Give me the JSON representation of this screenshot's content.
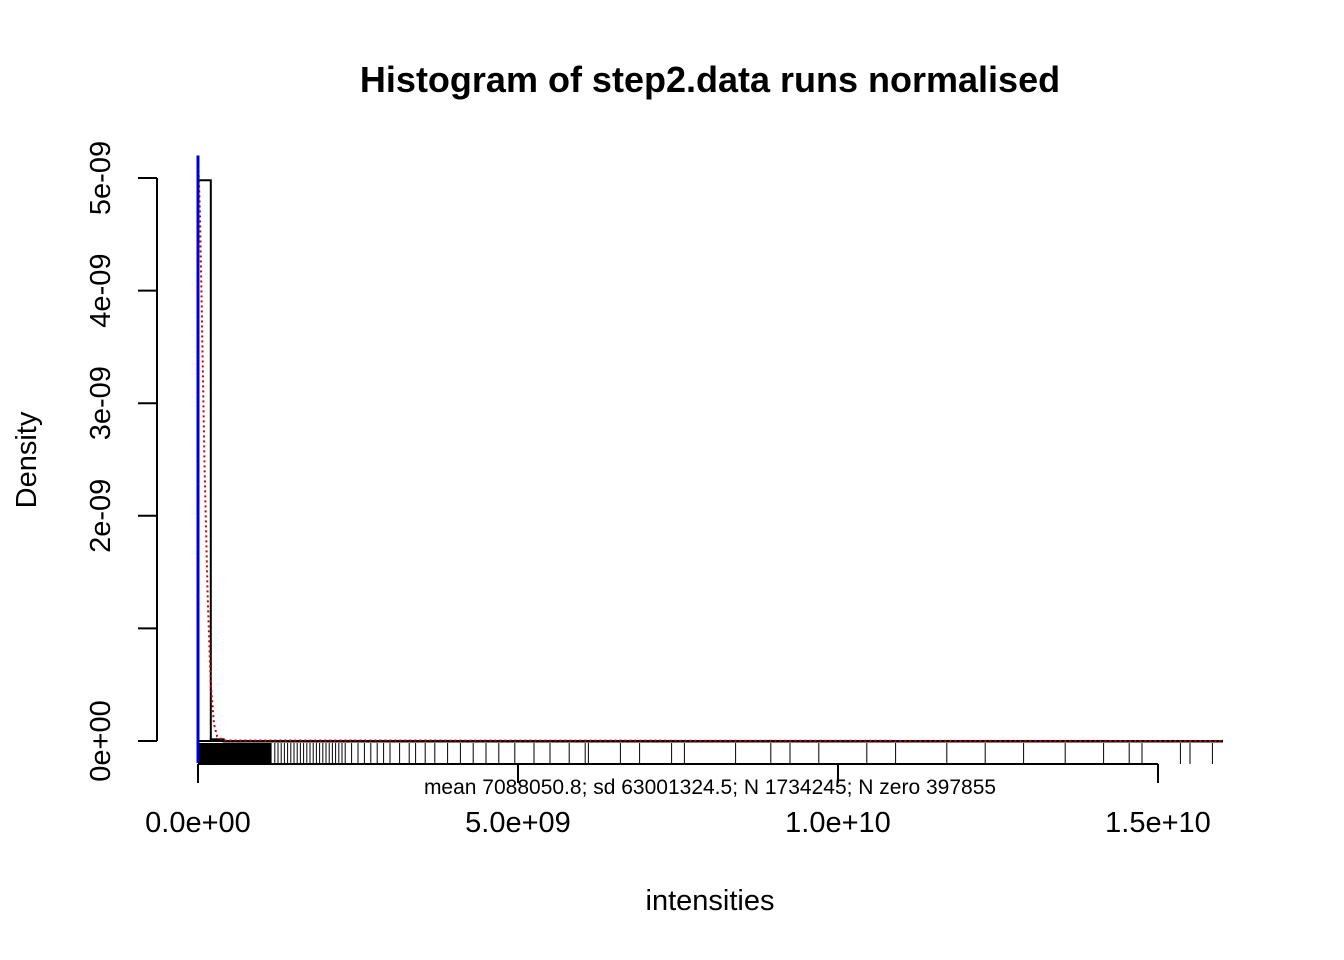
{
  "chart_data": {
    "type": "histogram",
    "title": "Histogram of step2.data runs normalised",
    "xlabel": "intensities",
    "ylabel": "Density",
    "subtitle": "mean 7088050.8; sd 63001324.5; N 1734245; N zero 397855",
    "xlim": [
      0,
      16000000000
    ],
    "ylim": [
      0,
      5e-09
    ],
    "x_ticks": [
      {
        "value": 0,
        "label": "0.0e+00"
      },
      {
        "value": 5000000000,
        "label": "5.0e+09"
      },
      {
        "value": 10000000000,
        "label": "1.0e+10"
      },
      {
        "value": 15000000000,
        "label": "1.5e+10"
      }
    ],
    "y_ticks": [
      {
        "value": 0,
        "label": "0e+00"
      },
      {
        "value": 1e-09,
        "label": ""
      },
      {
        "value": 2e-09,
        "label": "2e-09"
      },
      {
        "value": 3e-09,
        "label": "3e-09"
      },
      {
        "value": 4e-09,
        "label": "4e-09"
      },
      {
        "value": 5e-09,
        "label": "5e-09"
      }
    ],
    "bins": [
      {
        "x0": 0,
        "x1": 200000000,
        "density": 4.98e-09
      },
      {
        "x0": 200000000,
        "x1": 400000000,
        "density": 1.5e-11
      },
      {
        "x0": 400000000,
        "x1": 16000000000,
        "density": 1e-13
      }
    ],
    "density_curve": {
      "color": "#cc0000",
      "style": "dotted",
      "points": [
        [
          0,
          5.2e-09
        ],
        [
          30000000,
          4.7e-09
        ],
        [
          60000000,
          3.8e-09
        ],
        [
          100000000,
          2.5e-09
        ],
        [
          150000000,
          1.3e-09
        ],
        [
          200000000,
          5e-10
        ],
        [
          250000000,
          1.5e-10
        ],
        [
          300000000,
          4e-11
        ],
        [
          400000000,
          5e-12
        ],
        [
          16000000000,
          0
        ]
      ]
    },
    "reference_line": {
      "x": 0,
      "color": "#0000cc"
    },
    "rug_x": [
      1200000000,
      1250000000,
      1300000000,
      1350000000,
      1400000000,
      1450000000,
      1500000000,
      1550000000,
      1600000000,
      1650000000,
      1700000000,
      1750000000,
      1800000000,
      1850000000,
      1900000000,
      1950000000,
      2000000000,
      2050000000,
      2100000000,
      2150000000,
      2200000000,
      2250000000,
      2300000000,
      2400000000,
      2500000000,
      2600000000,
      2700000000,
      2800000000,
      2900000000,
      3000000000,
      3150000000,
      3300000000,
      3400000000,
      3550000000,
      3700000000,
      3900000000,
      4100000000,
      4300000000,
      4500000000,
      4700000000,
      4950000000,
      5250000000,
      5500000000,
      5800000000,
      6050000000,
      6100000000,
      6600000000,
      6900000000,
      7400000000,
      7600000000,
      8400000000,
      8950000000,
      9250000000,
      9700000000,
      10450000000,
      10900000000,
      11700000000,
      12300000000,
      12900000000,
      13550000000,
      14150000000,
      14550000000,
      14750000000,
      15350000000,
      15500000000,
      15850000000
    ]
  }
}
